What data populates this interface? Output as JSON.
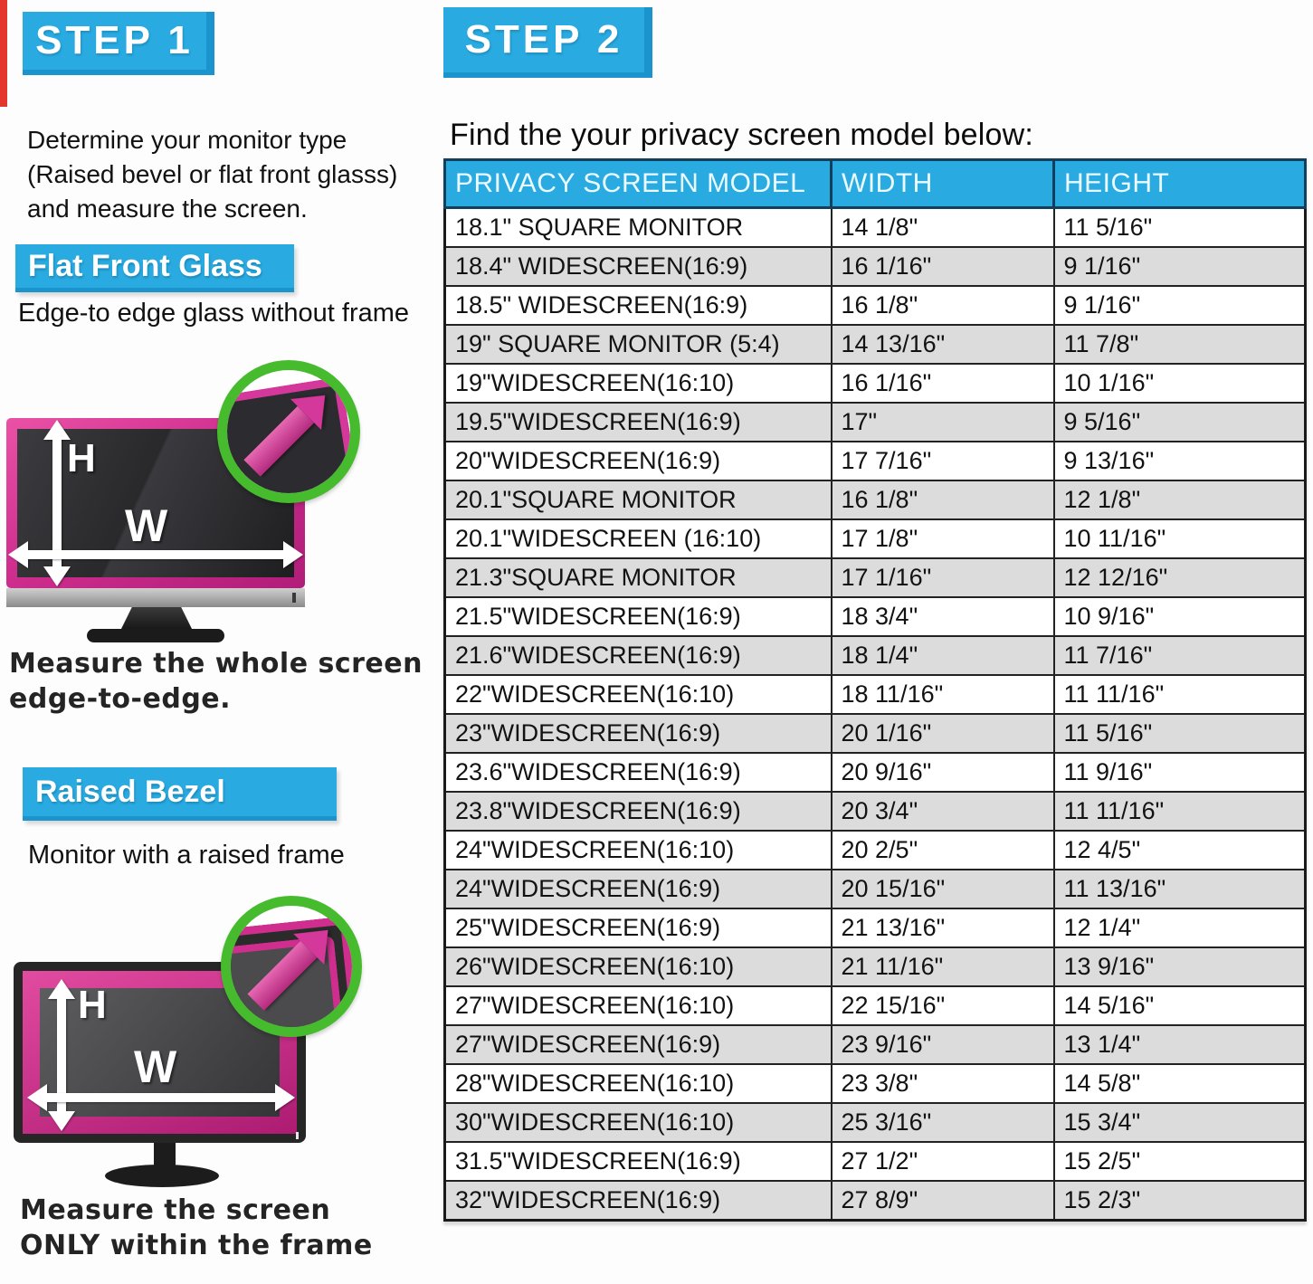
{
  "palette": {
    "accent_blue": "#29ABE2",
    "bezel_pink": "#CF2E8F",
    "circle_green": "#47BB2E",
    "row_alt_gray": "#DCDCDC",
    "edge_red": "#E5362E"
  },
  "step1": {
    "badge": "STEP 1",
    "intro_lines": [
      "Determine your monitor type",
      "(Raised bevel or flat front glasss)",
      "and measure the screen."
    ],
    "flat": {
      "heading": "Flat Front Glass",
      "subheading": "Edge-to edge glass without frame",
      "height_label": "H",
      "width_label": "W",
      "caption_lines": [
        "Measure the whole screen",
        "edge-to-edge."
      ]
    },
    "raised": {
      "heading": "Raised Bezel",
      "subheading": "Monitor with a raised frame",
      "height_label": "H",
      "width_label": "W",
      "caption_lines": [
        "Measure the screen",
        "ONLY within the frame"
      ]
    }
  },
  "step2": {
    "badge": "STEP 2",
    "title": "Find the your privacy screen model below:",
    "table": {
      "columns": [
        "PRIVACY SCREEN MODEL",
        "WIDTH",
        "HEIGHT"
      ],
      "rows": [
        {
          "model": "18.1\" SQUARE MONITOR",
          "width": "14 1/8\"",
          "height": "11 5/16\""
        },
        {
          "model": "18.4\" WIDESCREEN(16:9)",
          "width": "16 1/16\"",
          "height": "9 1/16\""
        },
        {
          "model": "18.5\" WIDESCREEN(16:9)",
          "width": "16 1/8\"",
          "height": "9 1/16\""
        },
        {
          "model": "19\" SQUARE MONITOR (5:4)",
          "width": "14 13/16\"",
          "height": "11 7/8\""
        },
        {
          "model": "19\"WIDESCREEN(16:10)",
          "width": "16 1/16\"",
          "height": "10 1/16\""
        },
        {
          "model": "19.5\"WIDESCREEN(16:9)",
          "width": "17\"",
          "height": "9 5/16\""
        },
        {
          "model": "20\"WIDESCREEN(16:9)",
          "width": "17 7/16\"",
          "height": "9 13/16\""
        },
        {
          "model": "20.1\"SQUARE MONITOR",
          "width": "16 1/8\"",
          "height": "12 1/8\""
        },
        {
          "model": "20.1\"WIDESCREEN (16:10)",
          "width": "17 1/8\"",
          "height": "10 11/16\""
        },
        {
          "model": "21.3\"SQUARE MONITOR",
          "width": "17 1/16\"",
          "height": "12 12/16\""
        },
        {
          "model": "21.5\"WIDESCREEN(16:9)",
          "width": "18 3/4\"",
          "height": "10 9/16\""
        },
        {
          "model": "21.6\"WIDESCREEN(16:9)",
          "width": "18 1/4\"",
          "height": "11 7/16\""
        },
        {
          "model": "22\"WIDESCREEN(16:10)",
          "width": "18 11/16\"",
          "height": "11 11/16\""
        },
        {
          "model": "23\"WIDESCREEN(16:9)",
          "width": "20 1/16\"",
          "height": "11 5/16\""
        },
        {
          "model": "23.6\"WIDESCREEN(16:9)",
          "width": "20 9/16\"",
          "height": "11 9/16\""
        },
        {
          "model": "23.8\"WIDESCREEN(16:9)",
          "width": "20 3/4\"",
          "height": "11 11/16\""
        },
        {
          "model": "24\"WIDESCREEN(16:10)",
          "width": "20 2/5\"",
          "height": "12 4/5\""
        },
        {
          "model": "24\"WIDESCREEN(16:9)",
          "width": "20 15/16\"",
          "height": "11 13/16\""
        },
        {
          "model": "25\"WIDESCREEN(16:9)",
          "width": "21 13/16\"",
          "height": "12 1/4\""
        },
        {
          "model": "26\"WIDESCREEN(16:10)",
          "width": "21 11/16\"",
          "height": "13 9/16\""
        },
        {
          "model": "27\"WIDESCREEN(16:10)",
          "width": "22 15/16\"",
          "height": "14 5/16\""
        },
        {
          "model": "27\"WIDESCREEN(16:9)",
          "width": "23 9/16\"",
          "height": "13 1/4\""
        },
        {
          "model": "28\"WIDESCREEN(16:10)",
          "width": "23 3/8\"",
          "height": "14 5/8\""
        },
        {
          "model": "30\"WIDESCREEN(16:10)",
          "width": "25 3/16\"",
          "height": "15 3/4\""
        },
        {
          "model": "31.5\"WIDESCREEN(16:9)",
          "width": "27 1/2\"",
          "height": "15 2/5\""
        },
        {
          "model": "32\"WIDESCREEN(16:9)",
          "width": "27 8/9\"",
          "height": "15 2/3\""
        }
      ]
    }
  }
}
